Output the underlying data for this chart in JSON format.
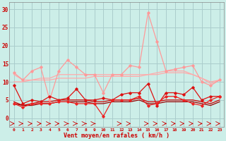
{
  "xlabel": "Vent moyen/en rafales ( km/h )",
  "bg_color": "#cceee8",
  "grid_color": "#aacccc",
  "x_ticks": [
    0,
    1,
    2,
    3,
    4,
    5,
    6,
    7,
    8,
    9,
    10,
    11,
    12,
    13,
    14,
    15,
    16,
    17,
    18,
    19,
    20,
    21,
    22,
    23
  ],
  "ylim": [
    -2.5,
    32
  ],
  "yticks": [
    0,
    5,
    10,
    15,
    20,
    25,
    30
  ],
  "series": [
    {
      "y": [
        12,
        10.5,
        10.5,
        11,
        11,
        12,
        12,
        12,
        12,
        12,
        12,
        12,
        12,
        12,
        12,
        12,
        12.5,
        13,
        13,
        13,
        12,
        11,
        10,
        10.5
      ],
      "color": "#ffaaaa",
      "lw": 0.9,
      "marker": null
    },
    {
      "y": [
        10,
        10,
        10.5,
        10.5,
        10.5,
        11,
        11,
        11,
        11,
        11.5,
        11.5,
        11.5,
        11.5,
        11.5,
        11.5,
        12,
        12,
        12.5,
        12.5,
        12.5,
        12,
        11,
        9.5,
        10.5
      ],
      "color": "#ffaaaa",
      "lw": 0.9,
      "marker": null
    },
    {
      "y": [
        12.5,
        10.5,
        13,
        14,
        5,
        13,
        16,
        14,
        12,
        12,
        7,
        12,
        12,
        14.5,
        14,
        29,
        21,
        13,
        13.5,
        14,
        14.5,
        10,
        9,
        10.5
      ],
      "color": "#ff9999",
      "lw": 0.9,
      "marker": "D",
      "ms": 1.8
    },
    {
      "y": [
        9,
        4,
        5,
        4.5,
        6,
        5,
        5.5,
        8,
        5,
        5,
        5.5,
        5,
        6.5,
        7,
        7,
        9.5,
        3.5,
        7,
        7,
        6.5,
        8.5,
        5,
        6,
        6
      ],
      "color": "#dd1111",
      "lw": 0.9,
      "marker": "D",
      "ms": 1.8
    },
    {
      "y": [
        4,
        3,
        4,
        4,
        4,
        4.5,
        4.5,
        4,
        4,
        4,
        0.5,
        5,
        5,
        5,
        6,
        3.5,
        4,
        6,
        6,
        5,
        4,
        3.5,
        5,
        6
      ],
      "color": "#ee2222",
      "lw": 0.9,
      "marker": "D",
      "ms": 1.8
    },
    {
      "y": [
        4.5,
        3.5,
        4,
        4.5,
        4.5,
        5,
        5,
        5,
        5,
        4.5,
        4.5,
        5,
        5,
        5,
        5.5,
        4.5,
        4.5,
        5,
        5,
        5,
        5,
        4.5,
        4,
        5
      ],
      "color": "#cc0000",
      "lw": 0.9,
      "marker": null
    },
    {
      "y": [
        4,
        3.5,
        3.5,
        4,
        4,
        4.5,
        4.5,
        4.5,
        4.5,
        4,
        4,
        4.5,
        4.5,
        4.5,
        5,
        4,
        4,
        4.5,
        4.5,
        4.5,
        4.5,
        4,
        3.5,
        4.5
      ],
      "color": "#990000",
      "lw": 0.9,
      "marker": null
    }
  ],
  "arrow_angles": [
    45,
    60,
    45,
    30,
    20,
    30,
    20,
    20,
    20,
    15,
    90,
    270,
    300,
    315,
    270,
    315,
    315,
    30,
    30,
    45,
    45,
    30,
    315,
    315
  ]
}
